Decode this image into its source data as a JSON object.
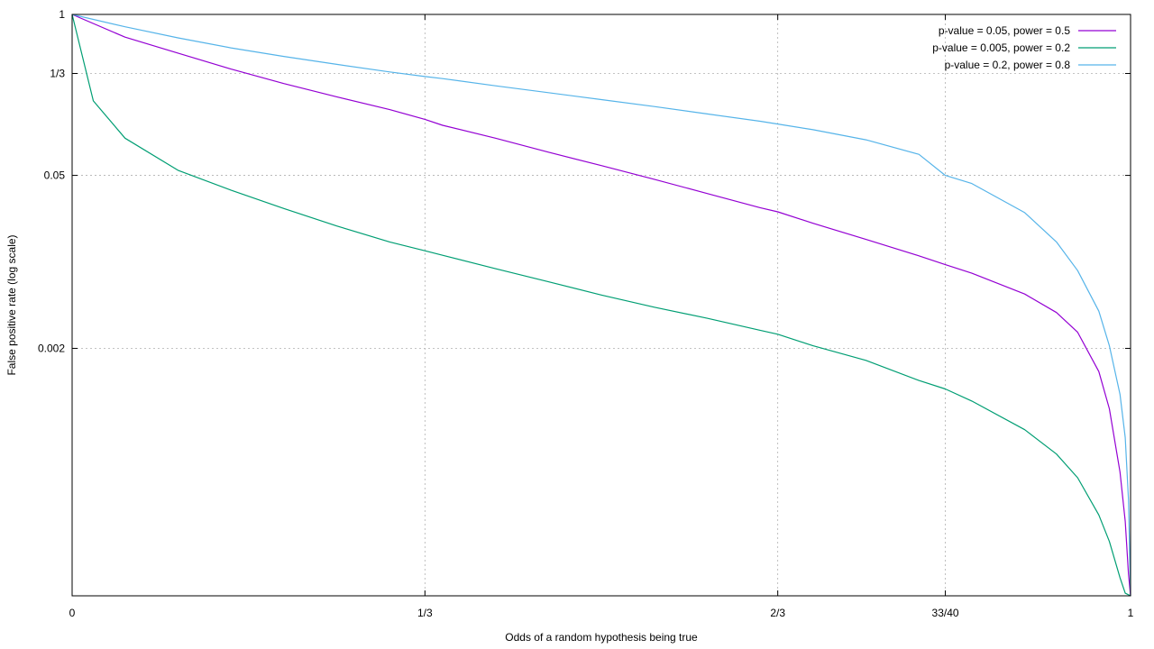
{
  "chart_data": {
    "type": "line",
    "title": "",
    "xlabel": "Odds of a random hypothesis being true",
    "ylabel": "False positive rate (log scale)",
    "x_scale": "linear",
    "y_scale": "log",
    "xlim": [
      0,
      1
    ],
    "ylim": [
      2e-05,
      1
    ],
    "grid": true,
    "legend_position": "top-right",
    "x_ticks": [
      {
        "value": 0,
        "label": "0"
      },
      {
        "value": 0.3333333,
        "label": "1/3"
      },
      {
        "value": 0.6666667,
        "label": "2/3"
      },
      {
        "value": 0.825,
        "label": "33/40"
      },
      {
        "value": 1,
        "label": "1"
      }
    ],
    "y_ticks": [
      {
        "value": 1,
        "label": "1"
      },
      {
        "value": 0.3333333,
        "label": "1/3"
      },
      {
        "value": 0.05,
        "label": "0.05"
      },
      {
        "value": 0.002,
        "label": "0.002"
      }
    ],
    "series": [
      {
        "name": "p-value = 0.05, power = 0.5",
        "color": "#9400d3",
        "x": [
          0,
          0.05,
          0.1,
          0.15,
          0.2,
          0.25,
          0.3,
          0.3333,
          0.35,
          0.4,
          0.45,
          0.5,
          0.55,
          0.6,
          0.65,
          0.6667,
          0.7,
          0.75,
          0.8,
          0.825,
          0.85,
          0.9,
          0.93,
          0.95,
          0.97,
          0.98,
          0.99,
          0.995,
          0.998,
          1
        ],
        "y": [
          1,
          0.655,
          0.487,
          0.362,
          0.276,
          0.216,
          0.17,
          0.142,
          0.127,
          0.1,
          0.077,
          0.06,
          0.0465,
          0.0357,
          0.0274,
          0.0254,
          0.0205,
          0.0152,
          0.0112,
          0.0095,
          0.0081,
          0.0055,
          0.0039,
          0.0027,
          0.0013,
          0.00065,
          0.0002,
          8e-05,
          3e-05,
          2e-05
        ]
      },
      {
        "name": "p-value = 0.005, power = 0.2",
        "color": "#009e73",
        "x": [
          0,
          0.02,
          0.05,
          0.1,
          0.15,
          0.2,
          0.25,
          0.3,
          0.3333,
          0.35,
          0.4,
          0.45,
          0.5,
          0.55,
          0.6,
          0.65,
          0.6667,
          0.7,
          0.75,
          0.8,
          0.825,
          0.85,
          0.9,
          0.93,
          0.95,
          0.97,
          0.98,
          0.99,
          0.995,
          1
        ],
        "y": [
          1,
          0.2,
          0.1,
          0.055,
          0.038,
          0.027,
          0.0195,
          0.0145,
          0.0123,
          0.0113,
          0.0088,
          0.0069,
          0.0054,
          0.0043,
          0.0035,
          0.0028,
          0.0026,
          0.0021,
          0.0016,
          0.0011,
          0.00094,
          0.00075,
          0.00044,
          0.00028,
          0.00018,
          9e-05,
          5.5e-05,
          2.8e-05,
          2.1e-05,
          2e-05
        ]
      },
      {
        "name": "p-value = 0.2, power = 0.8",
        "color": "#56b4e9",
        "x": [
          0,
          0.05,
          0.1,
          0.15,
          0.2,
          0.25,
          0.3,
          0.3333,
          0.35,
          0.4,
          0.45,
          0.5,
          0.55,
          0.6,
          0.65,
          0.6667,
          0.7,
          0.75,
          0.8,
          0.825,
          0.85,
          0.9,
          0.93,
          0.95,
          0.97,
          0.98,
          0.99,
          0.995,
          0.998,
          1
        ],
        "y": [
          1,
          0.795,
          0.647,
          0.537,
          0.458,
          0.395,
          0.343,
          0.315,
          0.303,
          0.265,
          0.233,
          0.205,
          0.18,
          0.157,
          0.137,
          0.13,
          0.117,
          0.097,
          0.074,
          0.05,
          0.043,
          0.025,
          0.0145,
          0.0085,
          0.004,
          0.0021,
          0.00085,
          0.00038,
          0.00012,
          2e-05
        ]
      }
    ]
  }
}
